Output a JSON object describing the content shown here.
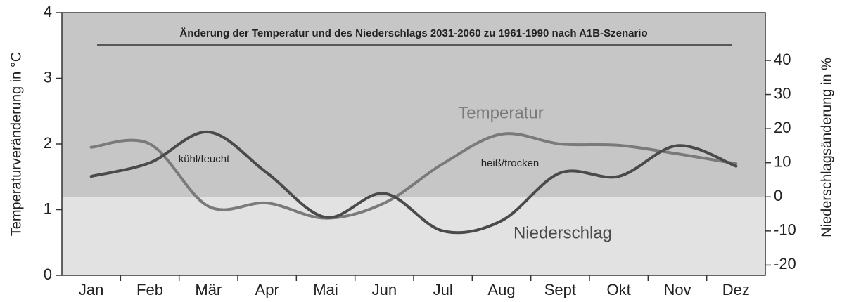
{
  "chart_data": {
    "type": "line",
    "title": "Änderung der Temperatur und des Niederschlags 2031-2060 zu 1961-1990 nach A1B-Szenario",
    "ylabel": "Temperaturveränderung in °C",
    "y2label": "Niederschlagsänderung in %",
    "categories": [
      "Jan",
      "Feb",
      "Mär",
      "Apr",
      "Mai",
      "Jun",
      "Jul",
      "Aug",
      "Sept",
      "Okt",
      "Nov",
      "Dez"
    ],
    "series": [
      {
        "name": "Temperatur",
        "color": "#7a7a7a",
        "values": [
          1.95,
          2.0,
          1.05,
          1.1,
          0.87,
          1.1,
          1.7,
          2.15,
          2.0,
          1.98,
          1.85,
          1.7
        ]
      },
      {
        "name": "Niederschlag",
        "color": "#4a4a4a",
        "axis": "y2",
        "values": [
          6,
          10,
          19,
          7,
          -6,
          1,
          -10,
          -7,
          7,
          6,
          15,
          9
        ]
      }
    ],
    "annotations": [
      "kühl/feucht",
      "heiß/trocken"
    ],
    "ylim": [
      0,
      4
    ],
    "yticks": [
      0,
      1,
      2,
      3,
      4
    ],
    "y2lim": [
      -23,
      54
    ],
    "y2ticks": [
      -20,
      -10,
      0,
      10,
      20,
      30,
      40
    ]
  }
}
